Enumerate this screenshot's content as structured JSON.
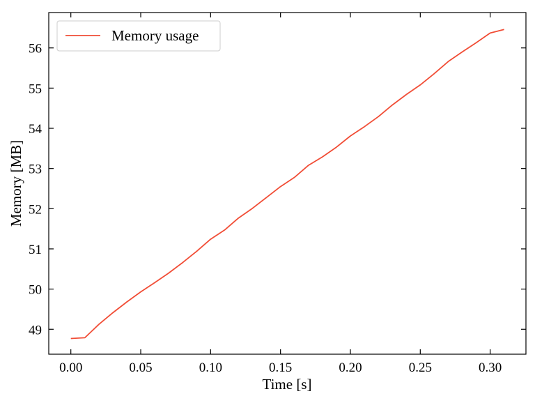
{
  "chart_data": {
    "type": "line",
    "title": "",
    "xlabel": "Time [s]",
    "ylabel": "Memory [MB]",
    "xlim": [
      -0.0158,
      0.3256
    ],
    "ylim": [
      48.38,
      56.88
    ],
    "xticks": [
      0.0,
      0.05,
      0.1,
      0.15,
      0.2,
      0.25,
      0.3
    ],
    "xtick_labels": [
      "0.00",
      "0.05",
      "0.10",
      "0.15",
      "0.20",
      "0.25",
      "0.30"
    ],
    "yticks": [
      49,
      50,
      51,
      52,
      53,
      54,
      55,
      56
    ],
    "ytick_labels": [
      "49",
      "50",
      "51",
      "52",
      "53",
      "54",
      "55",
      "56"
    ],
    "grid": false,
    "legend_position": "top-left",
    "series": [
      {
        "name": "Memory usage",
        "color": "#f14d36",
        "x": [
          0.0,
          0.01,
          0.02,
          0.03,
          0.04,
          0.05,
          0.06,
          0.07,
          0.08,
          0.09,
          0.1,
          0.11,
          0.12,
          0.13,
          0.14,
          0.15,
          0.16,
          0.17,
          0.18,
          0.19,
          0.2,
          0.21,
          0.22,
          0.23,
          0.24,
          0.25,
          0.26,
          0.27,
          0.28,
          0.29,
          0.3,
          0.31
        ],
        "y": [
          48.77,
          48.79,
          49.12,
          49.41,
          49.68,
          49.93,
          50.16,
          50.4,
          50.66,
          50.94,
          51.24,
          51.47,
          51.77,
          52.01,
          52.28,
          52.55,
          52.78,
          53.08,
          53.29,
          53.53,
          53.81,
          54.04,
          54.29,
          54.58,
          54.84,
          55.08,
          55.36,
          55.66,
          55.9,
          56.13,
          56.37,
          56.46
        ]
      }
    ]
  }
}
